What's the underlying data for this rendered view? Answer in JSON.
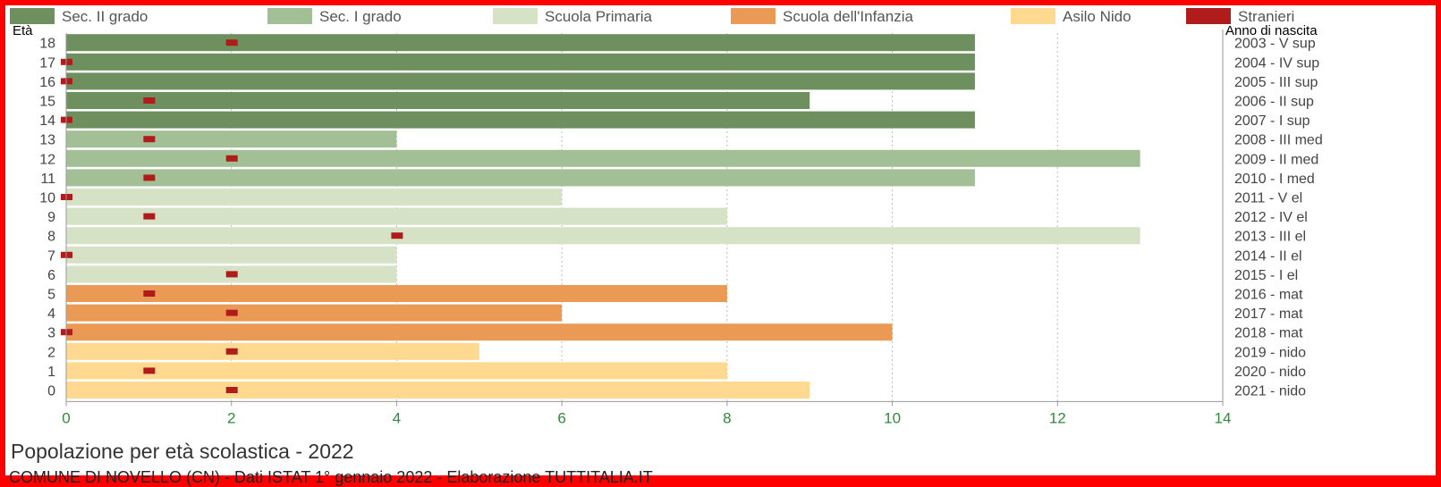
{
  "chart_data": {
    "type": "bar",
    "orientation": "horizontal",
    "title": "Popolazione per età scolastica - 2022",
    "source": "COMUNE DI NOVELLO (CN) - Dati ISTAT 1° gennaio 2022 - Elaborazione TUTTITALIA.IT",
    "y_left_label": "Età",
    "y_right_label": "Anno di nascita",
    "xlim": [
      0,
      14
    ],
    "x_ticks": [
      "0",
      "2",
      "4",
      "6",
      "8",
      "10",
      "12",
      "14"
    ],
    "grid": true,
    "legend_position": "top",
    "legend": [
      {
        "name": "Sec. II grado",
        "color": "#6e8f5e"
      },
      {
        "name": "Sec. I grado",
        "color": "#a3bf95"
      },
      {
        "name": "Scuola Primaria",
        "color": "#d5e2c6"
      },
      {
        "name": "Scuola dell'Infanzia",
        "color": "#eb9a55"
      },
      {
        "name": "Asilo Nido",
        "color": "#ffd990"
      },
      {
        "name": "Stranieri",
        "color": "#b01c1c"
      }
    ],
    "rows": [
      {
        "age": "18",
        "birth": "2003 - V sup",
        "value": 11,
        "foreign": 2,
        "group": 0
      },
      {
        "age": "17",
        "birth": "2004 - IV sup",
        "value": 11,
        "foreign": 0,
        "group": 0
      },
      {
        "age": "16",
        "birth": "2005 - III sup",
        "value": 11,
        "foreign": 0,
        "group": 0
      },
      {
        "age": "15",
        "birth": "2006 - II sup",
        "value": 9,
        "foreign": 1,
        "group": 0
      },
      {
        "age": "14",
        "birth": "2007 - I sup",
        "value": 11,
        "foreign": 0,
        "group": 0
      },
      {
        "age": "13",
        "birth": "2008 - III med",
        "value": 4,
        "foreign": 1,
        "group": 1
      },
      {
        "age": "12",
        "birth": "2009 - II med",
        "value": 13,
        "foreign": 2,
        "group": 1
      },
      {
        "age": "11",
        "birth": "2010 - I med",
        "value": 11,
        "foreign": 1,
        "group": 1
      },
      {
        "age": "10",
        "birth": "2011 - V el",
        "value": 6,
        "foreign": 0,
        "group": 2
      },
      {
        "age": "9",
        "birth": "2012 - IV el",
        "value": 8,
        "foreign": 1,
        "group": 2
      },
      {
        "age": "8",
        "birth": "2013 - III el",
        "value": 13,
        "foreign": 4,
        "group": 2
      },
      {
        "age": "7",
        "birth": "2014 - II el",
        "value": 4,
        "foreign": 0,
        "group": 2
      },
      {
        "age": "6",
        "birth": "2015 - I el",
        "value": 4,
        "foreign": 2,
        "group": 2
      },
      {
        "age": "5",
        "birth": "2016 - mat",
        "value": 8,
        "foreign": 1,
        "group": 3
      },
      {
        "age": "4",
        "birth": "2017 - mat",
        "value": 6,
        "foreign": 2,
        "group": 3
      },
      {
        "age": "3",
        "birth": "2018 - mat",
        "value": 10,
        "foreign": 0,
        "group": 3
      },
      {
        "age": "2",
        "birth": "2019 - nido",
        "value": 5,
        "foreign": 2,
        "group": 4
      },
      {
        "age": "1",
        "birth": "2020 - nido",
        "value": 8,
        "foreign": 1,
        "group": 4
      },
      {
        "age": "0",
        "birth": "2021 - nido",
        "value": 9,
        "foreign": 2,
        "group": 4
      }
    ]
  }
}
